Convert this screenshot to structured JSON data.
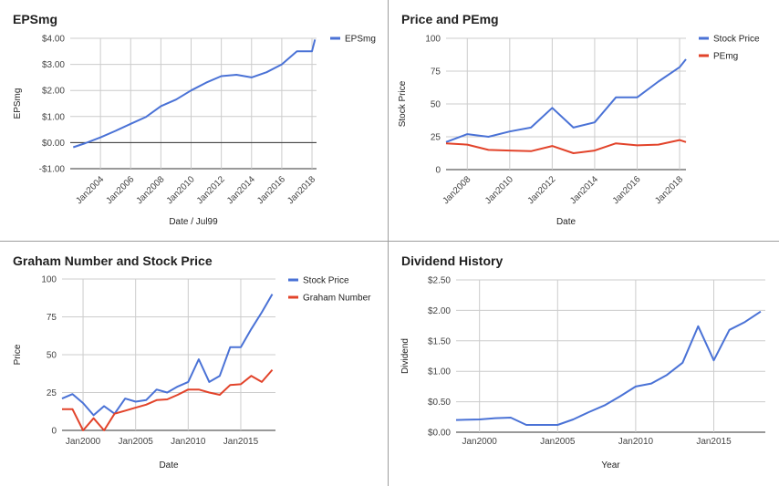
{
  "chart_data": [
    {
      "type": "line",
      "title": "EPSmg",
      "xlabel": "Date / Jul99",
      "ylabel": "EPSmg",
      "ylim": [
        -1,
        4
      ],
      "yticks": [
        -1,
        0,
        1,
        2,
        3,
        4
      ],
      "ytick_labels": [
        "-$1.00",
        "$0.00",
        "$1.00",
        "$2.00",
        "$3.00",
        "$4.00"
      ],
      "xlim": [
        2002,
        2018.3
      ],
      "xticks": [
        2004,
        2006,
        2008,
        2010,
        2012,
        2014,
        2016,
        2018
      ],
      "xtick_labels": [
        "Jan2004",
        "Jan2006",
        "Jan2008",
        "Jan2010",
        "Jan2012",
        "Jan2014",
        "Jan2016",
        "Jan2018"
      ],
      "x_tick_rotate": true,
      "zero_line": true,
      "legend": "right",
      "series": [
        {
          "name": "EPSmg",
          "color": "#4a72d6",
          "x": [
            2002.2,
            2003.0,
            2004.0,
            2005.0,
            2006.0,
            2007.0,
            2008.0,
            2009.0,
            2010.0,
            2011.0,
            2012.0,
            2013.0,
            2014.0,
            2015.0,
            2016.0,
            2017.0,
            2018.0,
            2018.2
          ],
          "y": [
            -0.18,
            -0.02,
            0.2,
            0.45,
            0.72,
            0.98,
            1.4,
            1.65,
            2.0,
            2.3,
            2.55,
            2.6,
            2.5,
            2.7,
            3.0,
            3.5,
            3.5,
            3.95
          ]
        }
      ]
    },
    {
      "type": "line",
      "title": "Price and PEmg",
      "xlabel": "Date",
      "ylabel": "Stock Price",
      "ylim": [
        0,
        100
      ],
      "yticks": [
        0,
        25,
        50,
        75,
        100
      ],
      "ytick_labels": [
        "0",
        "25",
        "50",
        "75",
        "100"
      ],
      "xlim": [
        2007,
        2018.3
      ],
      "xticks": [
        2008,
        2010,
        2012,
        2014,
        2016,
        2018
      ],
      "xtick_labels": [
        "Jan2008",
        "Jan2010",
        "Jan2012",
        "Jan2014",
        "Jan2016",
        "Jan2018"
      ],
      "x_tick_rotate": true,
      "legend": "right",
      "series": [
        {
          "name": "Stock Price",
          "color": "#4a72d6",
          "x": [
            2007.0,
            2008.0,
            2009.0,
            2010.0,
            2011.0,
            2012.0,
            2013.0,
            2014.0,
            2015.0,
            2016.0,
            2017.0,
            2018.0,
            2018.3
          ],
          "y": [
            21,
            27,
            25,
            29,
            32,
            47,
            32,
            36,
            55,
            55,
            67,
            78,
            84
          ]
        },
        {
          "name": "PEmg",
          "color": "#e2432a",
          "x": [
            2007.0,
            2008.0,
            2009.0,
            2010.0,
            2011.0,
            2012.0,
            2013.0,
            2014.0,
            2015.0,
            2016.0,
            2017.0,
            2018.0,
            2018.3
          ],
          "y": [
            20,
            19,
            15,
            14.5,
            14,
            18,
            12.5,
            14.5,
            20,
            18.5,
            19,
            22.5,
            21
          ]
        }
      ]
    },
    {
      "type": "line",
      "title": "Graham Number and Stock Price",
      "xlabel": "Date",
      "ylabel": "Price",
      "ylim": [
        0,
        100
      ],
      "yticks": [
        0,
        25,
        50,
        75,
        100
      ],
      "ytick_labels": [
        "0",
        "25",
        "50",
        "75",
        "100"
      ],
      "xlim": [
        1998,
        2018.3
      ],
      "xticks": [
        2000,
        2005,
        2010,
        2015
      ],
      "xtick_labels": [
        "Jan2000",
        "Jan2005",
        "Jan2010",
        "Jan2015"
      ],
      "x_tick_rotate": false,
      "legend": "right",
      "series": [
        {
          "name": "Stock Price",
          "color": "#4a72d6",
          "x": [
            1998.0,
            1999.0,
            2000.0,
            2001.0,
            2002.0,
            2003.0,
            2004.0,
            2005.0,
            2006.0,
            2007.0,
            2008.0,
            2009.0,
            2010.0,
            2011.0,
            2012.0,
            2013.0,
            2014.0,
            2015.0,
            2016.0,
            2017.0,
            2018.0
          ],
          "y": [
            21,
            24,
            18,
            10,
            16,
            11,
            21,
            19,
            20,
            27,
            25,
            29,
            32,
            47,
            32,
            36,
            55,
            55,
            67,
            78,
            90
          ]
        },
        {
          "name": "Graham Number",
          "color": "#e2432a",
          "x": [
            1998.0,
            1999.0,
            2000.0,
            2001.0,
            2002.0,
            2003.0,
            2004.0,
            2005.0,
            2006.0,
            2007.0,
            2008.0,
            2009.0,
            2010.0,
            2011.0,
            2012.0,
            2013.0,
            2014.0,
            2015.0,
            2016.0,
            2017.0,
            2018.0
          ],
          "y": [
            14,
            14,
            0,
            8,
            0,
            11,
            13,
            15,
            17,
            20,
            20.5,
            23.5,
            27,
            27,
            25,
            23.5,
            30,
            30.5,
            36,
            32,
            40
          ]
        }
      ]
    },
    {
      "type": "line",
      "title": "Dividend History",
      "xlabel": "Year",
      "ylabel": "Dividend",
      "ylim": [
        0,
        2.5
      ],
      "yticks": [
        0,
        0.5,
        1,
        1.5,
        2,
        2.5
      ],
      "ytick_labels": [
        "$0.00",
        "$0.50",
        "$1.00",
        "$1.50",
        "$2.00",
        "$2.50"
      ],
      "xlim": [
        1998.5,
        2018.3
      ],
      "xticks": [
        2000,
        2005,
        2010,
        2015
      ],
      "xtick_labels": [
        "Jan2000",
        "Jan2005",
        "Jan2010",
        "Jan2015"
      ],
      "x_tick_rotate": false,
      "legend": "none",
      "series": [
        {
          "name": "",
          "color": "#4a72d6",
          "x": [
            1998.5,
            2000.0,
            2001.0,
            2002.0,
            2003.0,
            2004.0,
            2005.0,
            2006.0,
            2007.0,
            2008.0,
            2009.0,
            2010.0,
            2011.0,
            2012.0,
            2013.0,
            2014.0,
            2015.0,
            2016.0,
            2017.0,
            2018.0
          ],
          "y": [
            0.2,
            0.21,
            0.23,
            0.24,
            0.12,
            0.12,
            0.12,
            0.21,
            0.33,
            0.44,
            0.59,
            0.75,
            0.8,
            0.94,
            1.14,
            1.74,
            1.18,
            1.68,
            1.81,
            1.98
          ]
        }
      ]
    }
  ]
}
